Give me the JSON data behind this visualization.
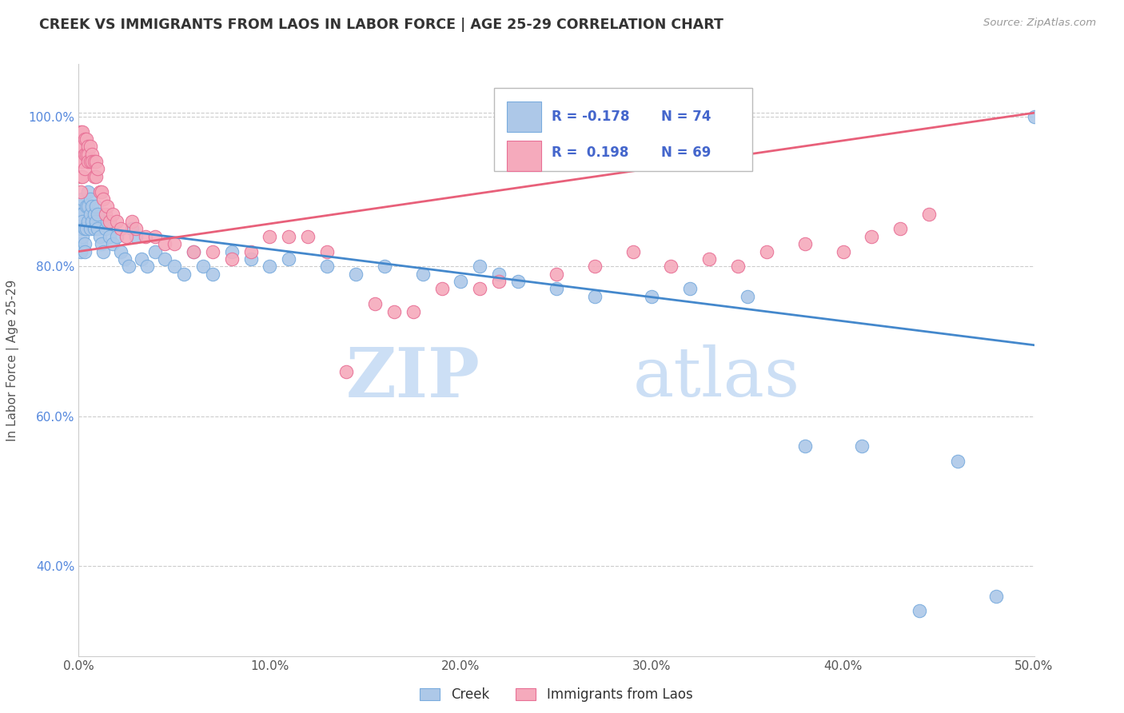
{
  "title": "CREEK VS IMMIGRANTS FROM LAOS IN LABOR FORCE | AGE 25-29 CORRELATION CHART",
  "source": "Source: ZipAtlas.com",
  "ylabel": "In Labor Force | Age 25-29",
  "xlim": [
    0.0,
    0.5
  ],
  "ylim": [
    0.28,
    1.07
  ],
  "xticks": [
    0.0,
    0.1,
    0.2,
    0.3,
    0.4,
    0.5
  ],
  "xticklabels": [
    "0.0%",
    "10.0%",
    "20.0%",
    "30.0%",
    "40.0%",
    "50.0%"
  ],
  "yticks": [
    0.4,
    0.6,
    0.8,
    1.0
  ],
  "yticklabels": [
    "40.0%",
    "60.0%",
    "80.0%",
    "100.0%"
  ],
  "grid_color": "#cccccc",
  "background_color": "#ffffff",
  "watermark_zip": "ZIP",
  "watermark_atlas": "atlas",
  "legend_r_creek": "-0.178",
  "legend_n_creek": "74",
  "legend_r_laos": "0.198",
  "legend_n_laos": "69",
  "creek_color": "#adc8e8",
  "creek_edge_color": "#7aacde",
  "laos_color": "#f5aabc",
  "laos_edge_color": "#e87096",
  "creek_trend_color": "#4488cc",
  "laos_trend_color": "#e8607a",
  "creek_trend_y0": 0.855,
  "creek_trend_y1": 0.695,
  "laos_trend_y0": 0.82,
  "laos_trend_y1": 1.005,
  "creek_x": [
    0.001,
    0.001,
    0.001,
    0.001,
    0.001,
    0.001,
    0.002,
    0.002,
    0.002,
    0.002,
    0.003,
    0.003,
    0.003,
    0.004,
    0.004,
    0.005,
    0.005,
    0.005,
    0.006,
    0.006,
    0.006,
    0.007,
    0.007,
    0.008,
    0.008,
    0.009,
    0.009,
    0.01,
    0.01,
    0.011,
    0.012,
    0.013,
    0.014,
    0.015,
    0.016,
    0.018,
    0.02,
    0.022,
    0.024,
    0.026,
    0.028,
    0.03,
    0.033,
    0.036,
    0.04,
    0.045,
    0.05,
    0.055,
    0.06,
    0.065,
    0.07,
    0.08,
    0.09,
    0.1,
    0.11,
    0.13,
    0.145,
    0.16,
    0.18,
    0.2,
    0.21,
    0.22,
    0.23,
    0.25,
    0.27,
    0.3,
    0.32,
    0.35,
    0.38,
    0.41,
    0.44,
    0.46,
    0.48,
    0.5
  ],
  "creek_y": [
    0.88,
    0.87,
    0.86,
    0.85,
    0.83,
    0.82,
    0.89,
    0.87,
    0.86,
    0.84,
    0.85,
    0.83,
    0.82,
    0.88,
    0.85,
    0.9,
    0.88,
    0.86,
    0.89,
    0.87,
    0.85,
    0.88,
    0.86,
    0.87,
    0.85,
    0.88,
    0.86,
    0.87,
    0.85,
    0.84,
    0.83,
    0.82,
    0.85,
    0.86,
    0.84,
    0.83,
    0.84,
    0.82,
    0.81,
    0.8,
    0.85,
    0.84,
    0.81,
    0.8,
    0.82,
    0.81,
    0.8,
    0.79,
    0.82,
    0.8,
    0.79,
    0.82,
    0.81,
    0.8,
    0.81,
    0.8,
    0.79,
    0.8,
    0.79,
    0.78,
    0.8,
    0.79,
    0.78,
    0.77,
    0.76,
    0.76,
    0.77,
    0.76,
    0.56,
    0.56,
    0.34,
    0.54,
    0.36,
    1.0
  ],
  "laos_x": [
    0.001,
    0.001,
    0.001,
    0.001,
    0.001,
    0.002,
    0.002,
    0.002,
    0.002,
    0.003,
    0.003,
    0.003,
    0.004,
    0.004,
    0.005,
    0.005,
    0.005,
    0.006,
    0.006,
    0.007,
    0.007,
    0.008,
    0.008,
    0.009,
    0.009,
    0.01,
    0.011,
    0.012,
    0.013,
    0.014,
    0.015,
    0.016,
    0.018,
    0.02,
    0.022,
    0.025,
    0.028,
    0.03,
    0.035,
    0.04,
    0.045,
    0.05,
    0.06,
    0.07,
    0.08,
    0.09,
    0.1,
    0.11,
    0.12,
    0.13,
    0.14,
    0.155,
    0.165,
    0.175,
    0.19,
    0.21,
    0.22,
    0.25,
    0.27,
    0.29,
    0.31,
    0.33,
    0.345,
    0.36,
    0.38,
    0.4,
    0.415,
    0.43,
    0.445
  ],
  "laos_y": [
    0.98,
    0.96,
    0.94,
    0.92,
    0.9,
    0.98,
    0.96,
    0.94,
    0.92,
    0.97,
    0.95,
    0.93,
    0.97,
    0.95,
    0.96,
    0.95,
    0.94,
    0.96,
    0.94,
    0.95,
    0.94,
    0.94,
    0.92,
    0.94,
    0.92,
    0.93,
    0.9,
    0.9,
    0.89,
    0.87,
    0.88,
    0.86,
    0.87,
    0.86,
    0.85,
    0.84,
    0.86,
    0.85,
    0.84,
    0.84,
    0.83,
    0.83,
    0.82,
    0.82,
    0.81,
    0.82,
    0.84,
    0.84,
    0.84,
    0.82,
    0.66,
    0.75,
    0.74,
    0.74,
    0.77,
    0.77,
    0.78,
    0.79,
    0.8,
    0.82,
    0.8,
    0.81,
    0.8,
    0.82,
    0.83,
    0.82,
    0.84,
    0.85,
    0.87
  ]
}
